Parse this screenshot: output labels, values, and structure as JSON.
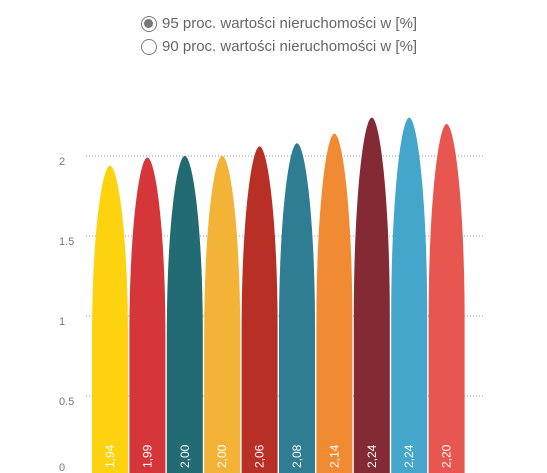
{
  "legend": {
    "options": [
      {
        "label": "95 proc. wartości nieruchomości w [%]",
        "selected": true
      },
      {
        "label": "90 proc. wartości nieruchomości w [%]",
        "selected": false
      }
    ]
  },
  "chart_data": {
    "type": "bar",
    "title": "",
    "xlabel": "",
    "ylabel": "",
    "ylim": [
      0,
      2
    ],
    "yticks": [
      {
        "value": 0,
        "label": "0"
      },
      {
        "value": 0.5,
        "label": "0.5"
      },
      {
        "value": 1,
        "label": "1"
      },
      {
        "value": 1.5,
        "label": "1.5"
      },
      {
        "value": 2,
        "label": "2"
      }
    ],
    "grid": true,
    "values": [
      1.94,
      1.99,
      2.0,
      2.0,
      2.06,
      2.08,
      2.14,
      2.24,
      2.24,
      2.2
    ],
    "data_labels": [
      "1,94",
      "1,99",
      "2,00",
      "2,00",
      "2,06",
      "2,08",
      "2,14",
      "2,24",
      "2,24",
      "2,20"
    ],
    "colors": [
      "#FDD20F",
      "#D4363A",
      "#226B72",
      "#F2B336",
      "#B82F26",
      "#2E7D92",
      "#F18B33",
      "#842A35",
      "#44A6CA",
      "#E8574F"
    ]
  }
}
